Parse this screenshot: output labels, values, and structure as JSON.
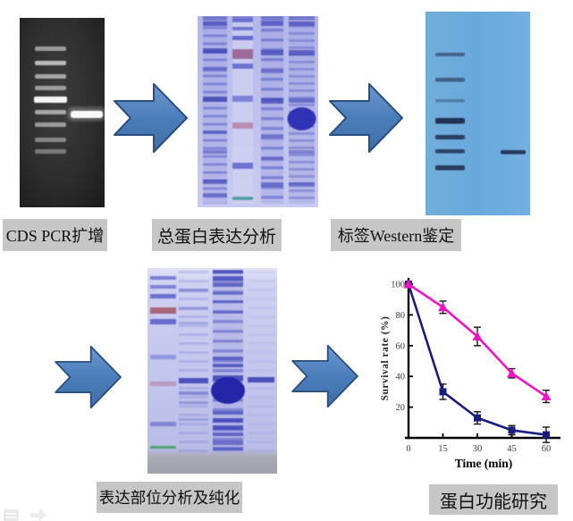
{
  "figure": {
    "steps": [
      {
        "label": "CDS PCR扩增"
      },
      {
        "label": "总蛋白表达分析"
      },
      {
        "label": "标签Western鉴定"
      },
      {
        "label": "表达部位分析及纯化"
      },
      {
        "label": "蛋白功能研究"
      }
    ]
  },
  "colors": {
    "arrow_fill": "#4a7ebb",
    "arrow_edge": "#2c4e7e",
    "label_background": "#c6c6c6",
    "label_text": "#111111",
    "dna_gel_background": "#2a2a2a",
    "sds_gel_background": "#c2c5ec",
    "western_blot_background": "#6aaade",
    "magenta_series": "#f013c4",
    "navy_series": "#1b1c80",
    "page_background": "#ffffff"
  },
  "chart_data": {
    "type": "line",
    "x": [
      0,
      15,
      30,
      45,
      60
    ],
    "xticks": [
      0,
      15,
      30,
      45,
      60
    ],
    "yticks": [
      20,
      40,
      60,
      80,
      100
    ],
    "xlabel": "Time (min)",
    "ylabel": "Survival rate (%)",
    "xlim": [
      0,
      65
    ],
    "ylim": [
      0,
      105
    ],
    "grid": false,
    "legend": "none",
    "series": [
      {
        "name": "navy-square-series",
        "marker": "square",
        "color": "#1b1c80",
        "values": [
          100,
          30,
          13,
          5,
          2
        ],
        "error": [
          0,
          5,
          4,
          3,
          5
        ]
      },
      {
        "name": "magenta-triangle-series",
        "marker": "triangle",
        "color": "#f013c4",
        "values": [
          100,
          85,
          66,
          42,
          27
        ],
        "error": [
          0,
          4,
          6,
          3,
          4
        ]
      }
    ]
  }
}
